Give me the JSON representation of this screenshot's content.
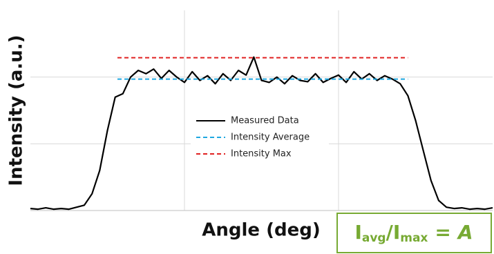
{
  "chart_data": {
    "type": "line",
    "ylabel": "Intensity (a.u.)",
    "xlabel": "Angle (deg)",
    "xlim": [
      0,
      3
    ],
    "ylim": [
      0,
      3
    ],
    "xticks": [
      1,
      2
    ],
    "yticks": [
      1,
      2
    ],
    "grid": true,
    "legend": "center",
    "series": [
      {
        "name": "Measured Data",
        "color": "#000000",
        "style": "solid",
        "x": [
          0,
          0.05,
          0.1,
          0.15,
          0.2,
          0.25,
          0.3,
          0.35,
          0.4,
          0.45,
          0.5,
          0.55,
          0.6,
          0.65,
          0.7,
          0.75,
          0.8,
          0.85,
          0.9,
          0.95,
          1.0,
          1.05,
          1.1,
          1.15,
          1.2,
          1.25,
          1.3,
          1.35,
          1.4,
          1.45,
          1.5,
          1.55,
          1.6,
          1.65,
          1.7,
          1.75,
          1.8,
          1.85,
          1.9,
          1.95,
          2.0,
          2.05,
          2.1,
          2.15,
          2.2,
          2.25,
          2.3,
          2.35,
          2.4,
          2.45,
          2.5,
          2.55,
          2.6,
          2.65,
          2.7,
          2.75,
          2.8,
          2.85,
          2.9,
          2.95,
          3.0
        ],
        "values": [
          0.03,
          0.02,
          0.04,
          0.02,
          0.03,
          0.02,
          0.05,
          0.08,
          0.25,
          0.6,
          1.2,
          1.7,
          1.75,
          2.0,
          2.1,
          2.05,
          2.12,
          1.98,
          2.1,
          2.0,
          1.92,
          2.08,
          1.95,
          2.02,
          1.9,
          2.05,
          1.95,
          2.1,
          2.03,
          2.3,
          1.95,
          1.92,
          2.0,
          1.9,
          2.02,
          1.95,
          1.93,
          2.05,
          1.92,
          1.98,
          2.03,
          1.92,
          2.08,
          1.97,
          2.05,
          1.95,
          2.02,
          1.97,
          1.9,
          1.72,
          1.35,
          0.9,
          0.45,
          0.15,
          0.05,
          0.03,
          0.04,
          0.02,
          0.03,
          0.02,
          0.04
        ]
      },
      {
        "name": "Intensity Average",
        "color": "#1ea7e0",
        "style": "dashed",
        "x": [
          0.565,
          2.45
        ],
        "values": [
          1.97,
          1.97
        ]
      },
      {
        "name": "Intensity Max",
        "color": "#e02020",
        "style": "dashed",
        "x": [
          0.565,
          2.45
        ],
        "values": [
          2.29,
          2.29
        ]
      }
    ],
    "annotation": {
      "color": "#77aa33",
      "parts": [
        "I",
        "avg",
        "/I",
        "max",
        "=",
        "A"
      ]
    }
  }
}
